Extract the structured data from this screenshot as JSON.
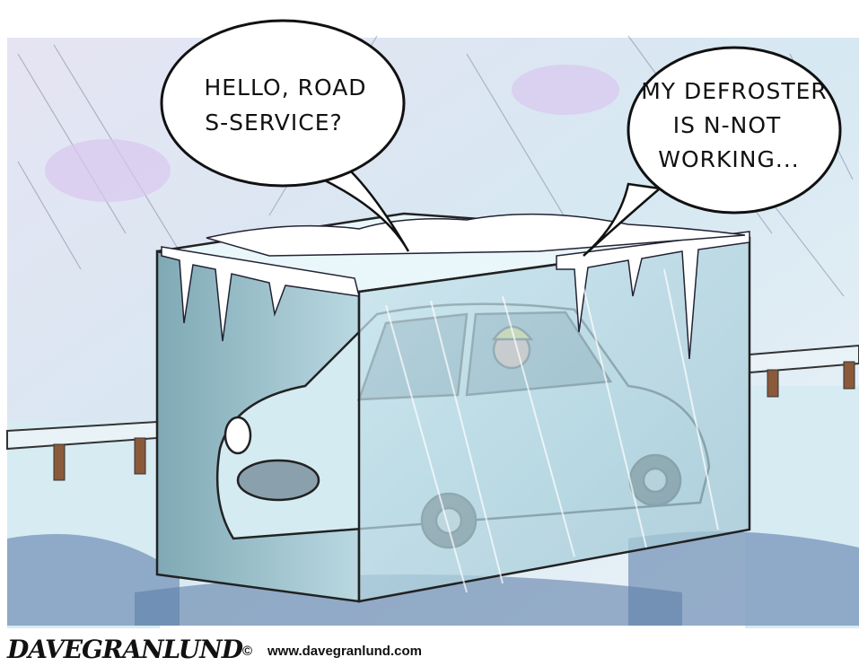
{
  "bubbles": [
    {
      "lines": [
        "HELLO, ROAD",
        "S-SERVICE?"
      ]
    },
    {
      "lines": [
        "MY DEFROSTER",
        "IS N-NOT",
        "WORKING..."
      ]
    }
  ],
  "signature": {
    "artist": "DAVEGRANLUND",
    "copyright": "©",
    "website": "www.davegranlund.com"
  }
}
